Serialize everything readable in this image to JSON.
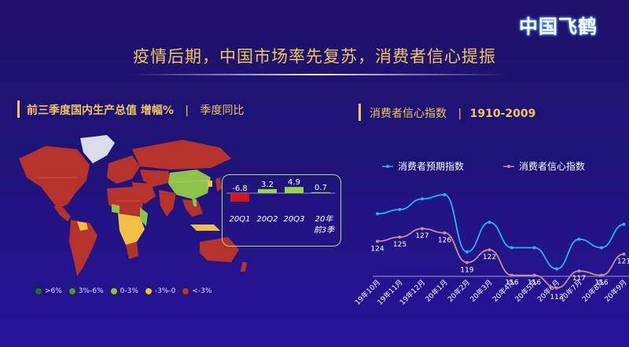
{
  "brand": {
    "logo_text": "中国飞鹤"
  },
  "headline": "疫情后期，中国市场率先复苏，消费者信心提振",
  "left_section": {
    "title_main": "前三季度国内生产总值 增幅%",
    "separator": "|",
    "title_sub": "季度同比"
  },
  "right_section": {
    "title_main": "消费者信心指数",
    "separator": "|",
    "title_range": "1910-2009"
  },
  "map_legend": [
    {
      "label": ">6%",
      "color": "#1a6f3a"
    },
    {
      "label": "3%-6%",
      "color": "#3e9a3a"
    },
    {
      "label": "0-3%",
      "color": "#8cc34a"
    },
    {
      "label": "-3%-0",
      "color": "#f0bf45"
    },
    {
      "label": "<-3%",
      "color": "#b5332a"
    }
  ],
  "chart_data": [
    {
      "type": "bar",
      "title": "前三季度国内生产总值 增幅%",
      "categories": [
        "20Q1",
        "20Q2",
        "20Q3",
        "20年前3季"
      ],
      "values": [
        -6.8,
        3.2,
        4.9,
        0.7
      ],
      "value_labels": [
        "-6.8",
        "3.2",
        "4.9",
        "0.7"
      ],
      "colors": {
        "negative": "#d0161b",
        "positive": "#9ad64a"
      }
    },
    {
      "type": "line",
      "title": "消费者信心指数",
      "categories": [
        "19年10月",
        "19年11月",
        "19年12月",
        "20年1月",
        "20年2月",
        "20年3月",
        "20年4月",
        "20年5月",
        "20年6月",
        "20年7月",
        "20年8月",
        "20年9月"
      ],
      "series": [
        {
          "name": "消费者预期指数",
          "color": "#25b4f0",
          "values": [
            130.5,
            131.5,
            134,
            135,
            121.5,
            128.5,
            122.5,
            122.5,
            117.5,
            124.5,
            122.5,
            128
          ]
        },
        {
          "name": "消费者信心指数",
          "color": "#c98d8a",
          "values": [
            124,
            125,
            127,
            126,
            119,
            122,
            116,
            116,
            113,
            117,
            116,
            121
          ],
          "labels": [
            "124",
            "125",
            "127",
            "126",
            "119",
            "122",
            "116",
            "116",
            "113",
            "117",
            "116",
            "121"
          ]
        }
      ],
      "legend": "top",
      "grid": false
    }
  ]
}
